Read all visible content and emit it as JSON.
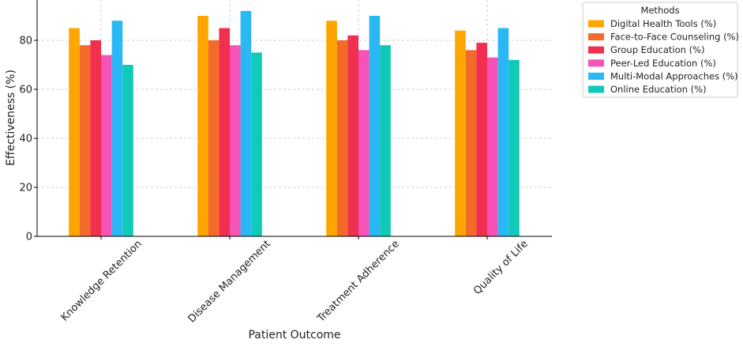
{
  "chart_data": {
    "type": "bar",
    "title": "",
    "xlabel": "Patient Outcome",
    "ylabel": "Effectiveness (%)",
    "categories": [
      "Knowledge Retention",
      "Disease Management",
      "Treatment Adherence",
      "Quality of Life"
    ],
    "ylim": [
      0,
      100
    ],
    "yticks": [
      0,
      20,
      40,
      60,
      80
    ],
    "grid": true,
    "legend": {
      "title": "Methods",
      "placement": "right-outside-top"
    },
    "series": [
      {
        "name": "Digital Health Tools (%)",
        "color": "#FFA500",
        "values": [
          85,
          90,
          88,
          84
        ]
      },
      {
        "name": "Face-to-Face Counseling (%)",
        "color": "#F26B28",
        "values": [
          78,
          80,
          80,
          76
        ]
      },
      {
        "name": "Group Education (%)",
        "color": "#F0304E",
        "values": [
          80,
          85,
          82,
          79
        ]
      },
      {
        "name": "Peer-Led Education (%)",
        "color": "#F553B8",
        "values": [
          74,
          78,
          76,
          73
        ]
      },
      {
        "name": "Multi-Modal Approaches (%)",
        "color": "#2AB8F5",
        "values": [
          88,
          92,
          90,
          85
        ]
      },
      {
        "name": "Online Education (%)",
        "color": "#11C9B8",
        "values": [
          70,
          75,
          78,
          72
        ]
      }
    ]
  }
}
